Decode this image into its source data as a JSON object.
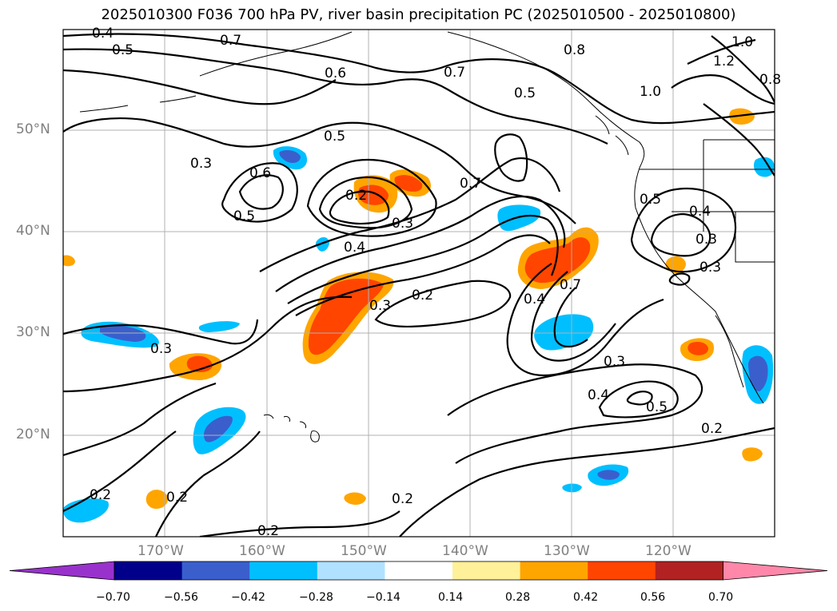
{
  "title": "2025010300 F036 700 hPa PV, river basin precipitation PC (2025010500 - 2025010800)",
  "lat_labels": [
    "50°N",
    "40°N",
    "30°N",
    "20°N"
  ],
  "lon_labels": [
    "170°W",
    "160°W",
    "150°W",
    "140°W",
    "130°W",
    "120°W"
  ],
  "contour_labels": [
    "0.4",
    "0.5",
    "0.7",
    "0.6",
    "0.7",
    "0.5",
    "0.8",
    "1.0",
    "1.2",
    "1.0",
    "0.8",
    "0.5",
    "0.3",
    "0.6",
    "0.2",
    "0.3",
    "0.5",
    "0.7",
    "0.4",
    "0.3",
    "0.2",
    "0.3",
    "0.4",
    "0.7",
    "0.5",
    "0.4",
    "0.3",
    "0.3",
    "0.4",
    "0.5",
    "0.3",
    "0.2",
    "0.2",
    "0.2",
    "0.2",
    "0.2"
  ],
  "colorbar": {
    "ticks": [
      "−0.70",
      "−0.56",
      "−0.42",
      "−0.28",
      "−0.14",
      "0.14",
      "0.28",
      "0.42",
      "0.56",
      "0.70"
    ],
    "colors": [
      "#9932cc",
      "#00008b",
      "#3a5fcd",
      "#00bfff",
      "#b0e2ff",
      "#ffffff",
      "#fff09a",
      "#ffa500",
      "#ff4500",
      "#b22222",
      "#ff88aa"
    ]
  },
  "colors": {
    "pos_low": "#ffa500",
    "pos_mid": "#ff4500",
    "neg_low": "#00bfff",
    "neg_mid": "#3a5fcd",
    "grid": "#b0b0b0",
    "contour": "#000000"
  }
}
